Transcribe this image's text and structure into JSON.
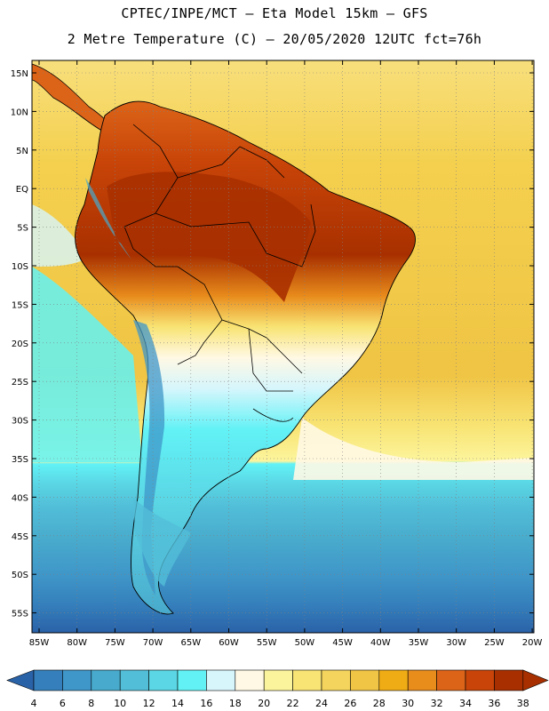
{
  "header": {
    "line1": "CPTEC/INPE/MCT –  Eta Model 15km – GFS",
    "line2": "2 Metre Temperature (C) – 20/05/2020 12UTC fct=76h"
  },
  "axes": {
    "lat_labels": [
      "15N",
      "10N",
      "5N",
      "EQ",
      "5S",
      "10S",
      "15S",
      "20S",
      "25S",
      "30S",
      "35S",
      "40S",
      "45S",
      "50S",
      "55S"
    ],
    "lon_labels": [
      "85W",
      "80W",
      "75W",
      "70W",
      "65W",
      "60W",
      "55W",
      "50W",
      "45W",
      "40W",
      "35W",
      "30W",
      "25W",
      "20W"
    ]
  },
  "colorbar": {
    "labels": [
      "4",
      "6",
      "8",
      "10",
      "12",
      "14",
      "16",
      "18",
      "20",
      "22",
      "24",
      "26",
      "28",
      "30",
      "32",
      "34",
      "36",
      "38"
    ],
    "colors": [
      "#2a62a8",
      "#3580bc",
      "#3f96c8",
      "#48aacc",
      "#52bed8",
      "#5ad6e4",
      "#62f2f6",
      "#d6f6fc",
      "#fff8e4",
      "#fcf49c",
      "#f8e474",
      "#f4d45c",
      "#f0c444",
      "#f0ac14",
      "#e88c1c",
      "#dc6418",
      "#c84408",
      "#a83000"
    ]
  },
  "legend_colors": {
    "ocean_tropical": "#f6d35a",
    "ocean_south": "#2a62a8",
    "amazon": "#a83000"
  }
}
